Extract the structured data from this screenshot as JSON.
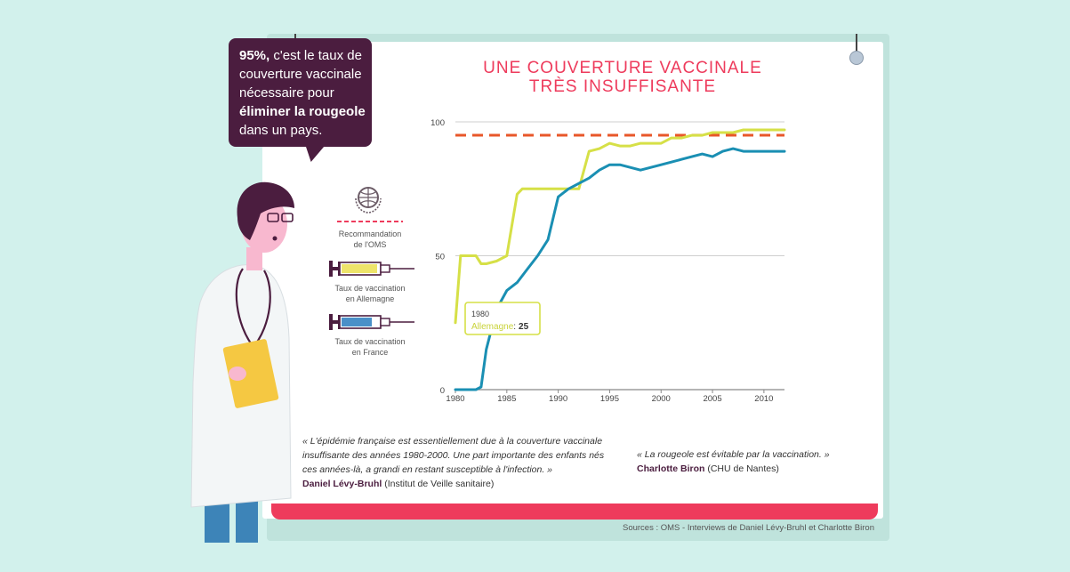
{
  "bubble": {
    "pct": "95%,",
    "l1_rest": " c'est le taux de",
    "l2": "couverture vaccinale",
    "l3": "nécessaire pour",
    "l4": "éliminer la rougeole",
    "l5": "dans un pays."
  },
  "legend": {
    "oms_l1": "Recommandation",
    "oms_l2": "de l'OMS",
    "de_l1": "Taux de vaccination",
    "de_l2": "en Allemagne",
    "fr_l1": "Taux de vaccination",
    "fr_l2": "en France"
  },
  "tooltip": {
    "year": "1980",
    "series": "Allemagne",
    "sep": ":",
    "value": "25"
  },
  "quotes": {
    "q1_l1": "« L'épidémie française est essentiellement due  à la couverture vaccinale",
    "q1_l2": "insuffisante des années 1980-2000. Une part importante des enfants nés",
    "q1_l3": "ces années-là, a grandi en restant susceptible à l'infection. »",
    "q1_author": "Daniel Lévy-Bruhl",
    "q1_org": " (Institut de Veille sanitaire)",
    "q2_l1": "« La rougeole est évitable par la vaccination. »",
    "q2_author": "Charlotte Biron",
    "q2_org": " (CHU de Nantes)"
  },
  "sources": "Sources : OMS - Interviews de Daniel Lévy-Bruhl et Charlotte Biron",
  "colors": {
    "allemagne": "#d6e047",
    "france": "#1a8fb3",
    "oms": "#e8572a",
    "title": "#ee3b5c",
    "bubble": "#4b1d3f"
  },
  "chart_data": {
    "type": "line",
    "title": "UNE COUVERTURE VACCINALE TRÈS INSUFFISANTE",
    "title_l1": "UNE COUVERTURE VACCINALE",
    "title_l2": "TRÈS INSUFFISANTE",
    "xlabel": "",
    "ylabel": "",
    "xlim": [
      1980,
      2012
    ],
    "ylim": [
      0,
      100
    ],
    "x_ticks": [
      1980,
      1985,
      1990,
      1995,
      2000,
      2005,
      2010
    ],
    "y_ticks": [
      0,
      50,
      100
    ],
    "grid": true,
    "reference_line": {
      "name": "Recommandation de l'OMS",
      "value": 95
    },
    "series": [
      {
        "name": "Taux de vaccination en Allemagne",
        "x": [
          1980,
          1980.5,
          1981,
          1982,
          1982.5,
          1983,
          1984,
          1985,
          1986,
          1986.5,
          1987,
          1988,
          1989,
          1990,
          1991,
          1992,
          1993,
          1994,
          1995,
          1996,
          1997,
          1998,
          1999,
          2000,
          2001,
          2002,
          2003,
          2004,
          2005,
          2006,
          2007,
          2008,
          2009,
          2010,
          2011,
          2012
        ],
        "values": [
          25,
          50,
          50,
          50,
          47,
          47,
          48,
          50,
          73,
          75,
          75,
          75,
          75,
          75,
          75,
          75,
          89,
          90,
          92,
          91,
          91,
          92,
          92,
          92,
          94,
          94,
          95,
          95,
          96,
          96,
          96,
          97,
          97,
          97,
          97,
          97
        ]
      },
      {
        "name": "Taux de vaccination en France",
        "x": [
          1980,
          1982,
          1982.5,
          1983,
          1984,
          1985,
          1986,
          1987,
          1988,
          1989,
          1990,
          1991,
          1992,
          1993,
          1994,
          1995,
          1996,
          1997,
          1998,
          1999,
          2000,
          2001,
          2002,
          2003,
          2004,
          2005,
          2006,
          2007,
          2008,
          2009,
          2010,
          2011,
          2012
        ],
        "values": [
          0,
          0,
          1,
          15,
          30,
          37,
          40,
          45,
          50,
          56,
          72,
          75,
          77,
          79,
          82,
          84,
          84,
          83,
          82,
          83,
          84,
          85,
          86,
          87,
          88,
          87,
          89,
          90,
          89,
          89,
          89,
          89,
          89
        ]
      }
    ]
  }
}
